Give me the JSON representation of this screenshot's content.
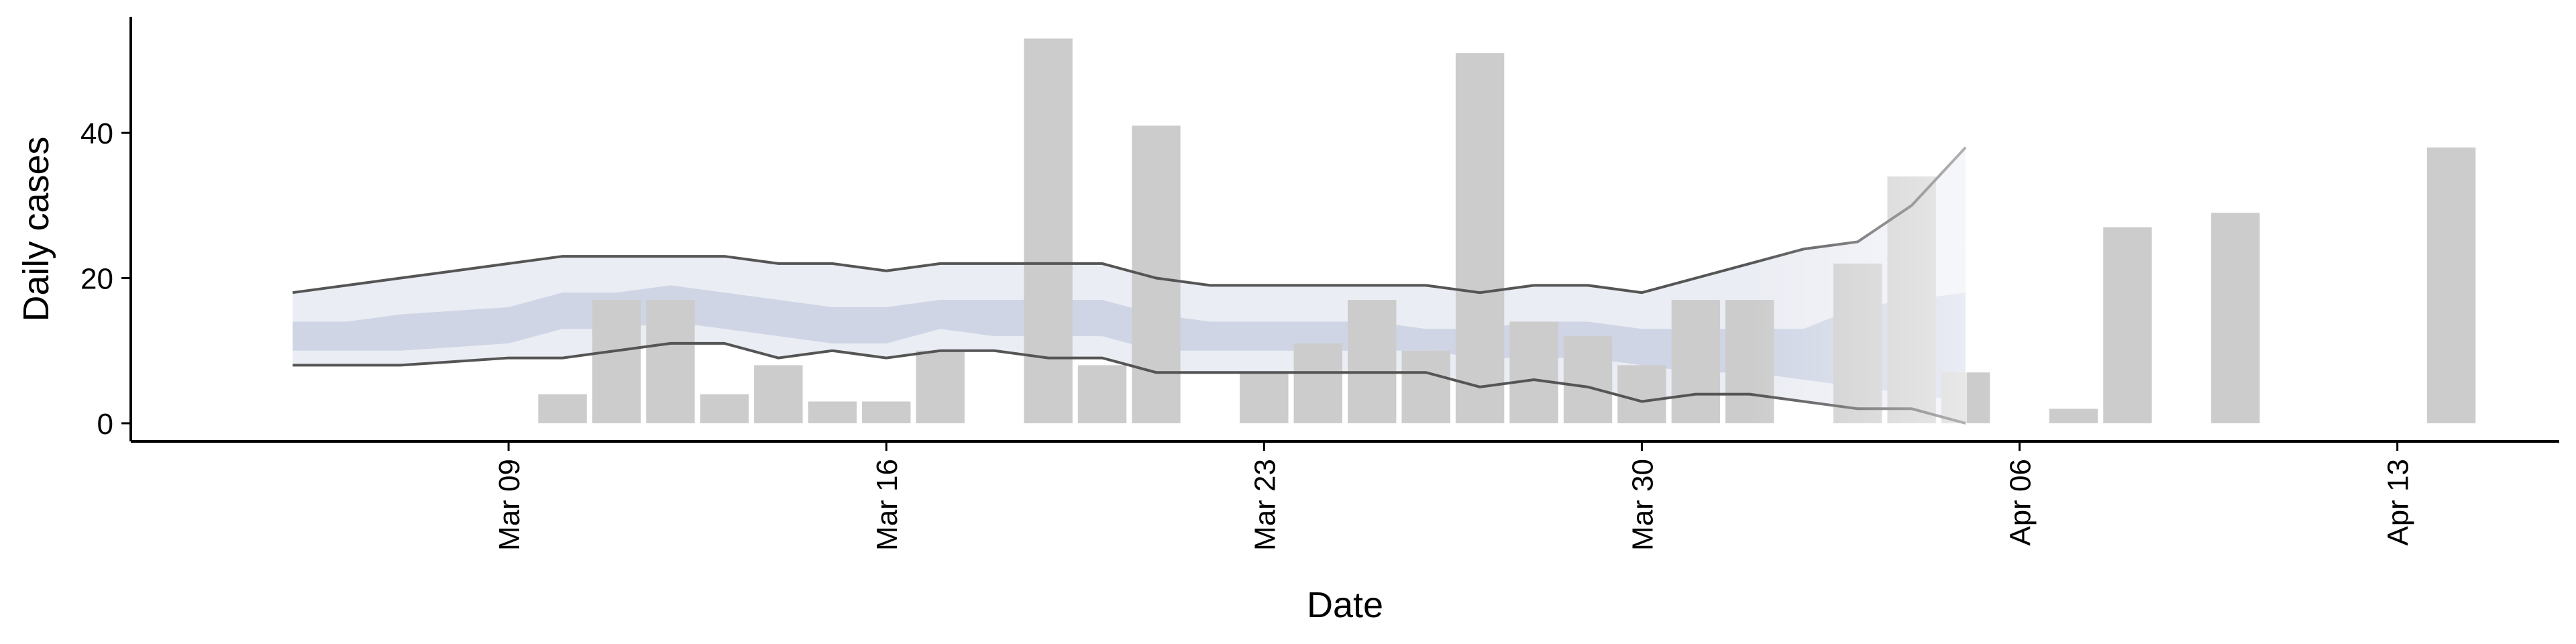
{
  "chart_data": {
    "type": "bar",
    "xlabel": "Date",
    "ylabel": "Daily cases",
    "x_ticks": [
      {
        "date": "2020-03-09",
        "label": "Mar 09"
      },
      {
        "date": "2020-03-16",
        "label": "Mar 16"
      },
      {
        "date": "2020-03-23",
        "label": "Mar 23"
      },
      {
        "date": "2020-03-30",
        "label": "Mar 30"
      },
      {
        "date": "2020-04-06",
        "label": "Apr 06"
      },
      {
        "date": "2020-04-13",
        "label": "Apr 13"
      }
    ],
    "y_ticks": [
      0,
      20,
      40
    ],
    "xlim": [
      "2020-03-02",
      "2020-04-16"
    ],
    "ylim": [
      -2.5,
      56
    ],
    "grid": false,
    "legend": "none",
    "bars": {
      "name": "Daily cases",
      "color": "#cccccc",
      "dates": [
        "2020-03-10",
        "2020-03-11",
        "2020-03-12",
        "2020-03-13",
        "2020-03-14",
        "2020-03-15",
        "2020-03-16",
        "2020-03-17",
        "2020-03-19",
        "2020-03-20",
        "2020-03-21",
        "2020-03-23",
        "2020-03-24",
        "2020-03-25",
        "2020-03-26",
        "2020-03-27",
        "2020-03-28",
        "2020-03-29",
        "2020-03-30",
        "2020-03-31",
        "2020-04-01",
        "2020-04-03",
        "2020-04-04",
        "2020-04-05",
        "2020-04-07",
        "2020-04-08",
        "2020-04-10",
        "2020-04-14"
      ],
      "values": [
        4,
        17,
        17,
        4,
        8,
        3,
        3,
        10,
        53,
        8,
        41,
        7,
        11,
        17,
        10,
        51,
        14,
        12,
        8,
        17,
        17,
        22,
        34,
        7,
        2,
        27,
        29,
        38
      ]
    },
    "estimate": {
      "color_band": "#aeb8d2",
      "color_line": "#555555",
      "dates": [
        "2020-03-05",
        "2020-03-06",
        "2020-03-07",
        "2020-03-08",
        "2020-03-09",
        "2020-03-10",
        "2020-03-11",
        "2020-03-12",
        "2020-03-13",
        "2020-03-14",
        "2020-03-15",
        "2020-03-16",
        "2020-03-17",
        "2020-03-18",
        "2020-03-19",
        "2020-03-20",
        "2020-03-21",
        "2020-03-22",
        "2020-03-23",
        "2020-03-24",
        "2020-03-25",
        "2020-03-26",
        "2020-03-27",
        "2020-03-28",
        "2020-03-29",
        "2020-03-30",
        "2020-03-31",
        "2020-04-01",
        "2020-04-02",
        "2020-04-03",
        "2020-04-04",
        "2020-04-05"
      ],
      "lower_90": [
        8,
        8,
        8,
        8.5,
        9,
        9,
        10,
        11,
        11,
        9,
        10,
        9,
        10,
        10,
        9,
        9,
        7,
        7,
        7,
        7,
        7,
        7,
        5,
        6,
        5,
        3,
        4,
        4,
        3,
        2,
        2,
        0
      ],
      "lower_50": [
        10,
        10,
        10,
        10.5,
        11,
        13,
        13,
        14,
        13,
        12,
        11,
        11,
        13,
        12,
        12,
        12,
        10,
        10,
        10,
        10,
        10,
        10,
        9,
        9,
        9,
        8,
        7,
        7,
        6,
        5,
        4,
        3
      ],
      "upper_50": [
        14,
        14,
        15,
        15.5,
        16,
        18,
        18,
        19,
        18,
        17,
        16,
        16,
        17,
        17,
        17,
        17,
        15,
        14,
        14,
        14,
        14,
        13,
        13,
        14,
        14,
        13,
        13,
        13,
        13,
        16,
        17,
        18
      ],
      "upper_90": [
        18,
        19,
        20,
        21,
        22,
        23,
        23,
        23,
        23,
        22,
        22,
        21,
        22,
        22,
        22,
        22,
        20,
        19,
        19,
        19,
        19,
        19,
        18,
        19,
        19,
        18,
        20,
        22,
        24,
        25,
        30,
        38
      ],
      "forecast_start": "2020-04-01"
    }
  }
}
